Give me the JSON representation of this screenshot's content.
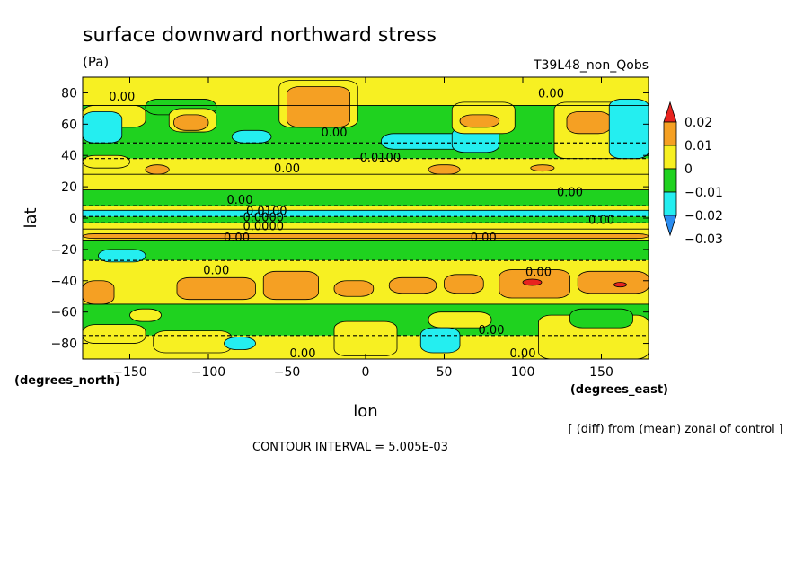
{
  "chart_data": {
    "type": "heatmap",
    "title": "surface downward northward stress",
    "units": "(Pa)",
    "run_label": "T39L48_non_Qobs",
    "xlabel": "lon",
    "ylabel": "lat",
    "x_unit_label": "(degrees_east)",
    "y_unit_label": "(degrees_north)",
    "xlim": [
      -180,
      180
    ],
    "ylim": [
      -90,
      90
    ],
    "x_ticks": [
      -150,
      -100,
      -50,
      0,
      50,
      100,
      150
    ],
    "y_ticks": [
      -80,
      -60,
      -40,
      -20,
      0,
      20,
      40,
      60,
      80
    ],
    "footer_note": "[ (diff) from (mean) zonal of control ]",
    "contour_interval_text": "CONTOUR INTERVAL = 5.005E-03",
    "colorbar": {
      "labels": [
        "0.02",
        "0.01",
        "0",
        "−0.01",
        "−0.02",
        "−0.03"
      ],
      "levels": [
        {
          "lo": 0.02,
          "hi": 0.03,
          "color": "#e8231f"
        },
        {
          "lo": 0.01,
          "hi": 0.02,
          "color": "#f5a023"
        },
        {
          "lo": 0.0,
          "hi": 0.01,
          "color": "#f7f022"
        },
        {
          "lo": -0.01,
          "hi": 0.0,
          "color": "#1fd21f"
        },
        {
          "lo": -0.02,
          "hi": -0.01,
          "color": "#24eef0"
        },
        {
          "lo": -0.03,
          "hi": -0.02,
          "color": "#2b8df0"
        }
      ]
    },
    "contour_labels": [
      {
        "text": "0.00",
        "lon": -155,
        "lat": 78
      },
      {
        "text": "0.00",
        "lon": 118,
        "lat": 80
      },
      {
        "text": "0.00",
        "lon": -20,
        "lat": 55
      },
      {
        "text": "-0.0100",
        "lon": 8,
        "lat": 39
      },
      {
        "text": "0.00",
        "lon": -50,
        "lat": 32
      },
      {
        "text": "0.00",
        "lon": 130,
        "lat": 17
      },
      {
        "text": "0.00",
        "lon": -80,
        "lat": 12
      },
      {
        "text": "0.0100",
        "lon": -63,
        "lat": 5
      },
      {
        "text": "0.0000",
        "lon": -65,
        "lat": 1
      },
      {
        "text": "0.0000",
        "lon": -65,
        "lat": -5
      },
      {
        "text": "0.00",
        "lon": -82,
        "lat": -12
      },
      {
        "text": "0.00",
        "lon": 75,
        "lat": -12
      },
      {
        "text": "0.00",
        "lon": 150,
        "lat": -1
      },
      {
        "text": "0.00",
        "lon": -95,
        "lat": -33
      },
      {
        "text": "0.00",
        "lon": 110,
        "lat": -34
      },
      {
        "text": "0.00",
        "lon": 80,
        "lat": -71
      },
      {
        "text": "0.00",
        "lon": 100,
        "lat": -86
      },
      {
        "text": "0.00",
        "lon": -40,
        "lat": -86
      }
    ],
    "regions": {
      "zonal_bands": [
        {
          "lat": [
            72,
            90
          ],
          "value": 0.005
        },
        {
          "lat": [
            48,
            72
          ],
          "value": -0.005
        },
        {
          "lat": [
            38,
            48
          ],
          "value": -0.005
        },
        {
          "lat": [
            28,
            38
          ],
          "value": 0.005
        },
        {
          "lat": [
            18,
            28
          ],
          "value": 0.003
        },
        {
          "lat": [
            8,
            18
          ],
          "value": -0.005
        },
        {
          "lat": [
            5,
            8
          ],
          "value": 0.003
        },
        {
          "lat": [
            1,
            5
          ],
          "value": -0.015
        },
        {
          "lat": [
            -3,
            1
          ],
          "value": -0.005
        },
        {
          "lat": [
            -7,
            -3
          ],
          "value": 0.004
        },
        {
          "lat": [
            -14,
            -7
          ],
          "value": 0.005
        },
        {
          "lat": [
            -27,
            -14
          ],
          "value": -0.005
        },
        {
          "lat": [
            -55,
            -27
          ],
          "value": 0.005
        },
        {
          "lat": [
            -75,
            -55
          ],
          "value": -0.005
        },
        {
          "lat": [
            -90,
            -75
          ],
          "value": 0.005
        }
      ],
      "features": [
        {
          "lon": -180,
          "lat": 72,
          "w": 40,
          "h": 14,
          "value": 0.005
        },
        {
          "lon": -180,
          "lat": 68,
          "w": 25,
          "h": 20,
          "value": -0.015
        },
        {
          "lon": -140,
          "lat": 76,
          "w": 45,
          "h": 10,
          "value": -0.005
        },
        {
          "lon": -125,
          "lat": 70,
          "w": 30,
          "h": 15,
          "value": 0.005
        },
        {
          "lon": -122,
          "lat": 66,
          "w": 22,
          "h": 10,
          "value": 0.015
        },
        {
          "lon": -85,
          "lat": 56,
          "w": 25,
          "h": 8,
          "value": -0.015
        },
        {
          "lon": -55,
          "lat": 88,
          "w": 50,
          "h": 30,
          "value": 0.005
        },
        {
          "lon": -50,
          "lat": 84,
          "w": 40,
          "h": 26,
          "value": 0.015
        },
        {
          "lon": 10,
          "lat": 54,
          "w": 60,
          "h": 10,
          "value": -0.015
        },
        {
          "lon": 55,
          "lat": 58,
          "w": 30,
          "h": 16,
          "value": -0.015
        },
        {
          "lon": 55,
          "lat": 74,
          "w": 40,
          "h": 20,
          "value": 0.005
        },
        {
          "lon": 60,
          "lat": 66,
          "w": 25,
          "h": 8,
          "value": 0.015
        },
        {
          "lon": 120,
          "lat": 74,
          "w": 60,
          "h": 36,
          "value": 0.005
        },
        {
          "lon": 128,
          "lat": 68,
          "w": 28,
          "h": 14,
          "value": 0.015
        },
        {
          "lon": 155,
          "lat": 76,
          "w": 25,
          "h": 38,
          "value": -0.015
        },
        {
          "lon": -180,
          "lat": 40,
          "w": 30,
          "h": 8,
          "value": 0.005
        },
        {
          "lon": -140,
          "lat": 34,
          "w": 15,
          "h": 6,
          "value": 0.015
        },
        {
          "lon": 40,
          "lat": 34,
          "w": 20,
          "h": 6,
          "value": 0.015
        },
        {
          "lon": 105,
          "lat": 34,
          "w": 15,
          "h": 4,
          "value": 0.015
        },
        {
          "lon": -180,
          "lat": -10,
          "w": 360,
          "h": 3,
          "value": 0.015
        },
        {
          "lon": -170,
          "lat": -20,
          "w": 30,
          "h": 8,
          "value": -0.015
        },
        {
          "lon": -180,
          "lat": -40,
          "w": 20,
          "h": 15,
          "value": 0.015
        },
        {
          "lon": -120,
          "lat": -38,
          "w": 50,
          "h": 14,
          "value": 0.015
        },
        {
          "lon": -65,
          "lat": -34,
          "w": 35,
          "h": 18,
          "value": 0.015
        },
        {
          "lon": -20,
          "lat": -40,
          "w": 25,
          "h": 10,
          "value": 0.015
        },
        {
          "lon": 15,
          "lat": -38,
          "w": 30,
          "h": 10,
          "value": 0.015
        },
        {
          "lon": 50,
          "lat": -36,
          "w": 25,
          "h": 12,
          "value": 0.015
        },
        {
          "lon": 85,
          "lat": -33,
          "w": 45,
          "h": 18,
          "value": 0.015
        },
        {
          "lon": 135,
          "lat": -34,
          "w": 45,
          "h": 14,
          "value": 0.015
        },
        {
          "lon": 100,
          "lat": -39,
          "w": 12,
          "h": 4,
          "value": 0.025
        },
        {
          "lon": 158,
          "lat": -41,
          "w": 8,
          "h": 3,
          "value": 0.025
        },
        {
          "lon": -180,
          "lat": -68,
          "w": 40,
          "h": 12,
          "value": 0.005
        },
        {
          "lon": -135,
          "lat": -72,
          "w": 50,
          "h": 14,
          "value": 0.005
        },
        {
          "lon": -150,
          "lat": -58,
          "w": 20,
          "h": 8,
          "value": 0.005
        },
        {
          "lon": -20,
          "lat": -66,
          "w": 40,
          "h": 22,
          "value": 0.005
        },
        {
          "lon": 40,
          "lat": -60,
          "w": 40,
          "h": 10,
          "value": 0.005
        },
        {
          "lon": 110,
          "lat": -62,
          "w": 70,
          "h": 28,
          "value": 0.005
        },
        {
          "lon": -90,
          "lat": -76,
          "w": 20,
          "h": 8,
          "value": -0.015
        },
        {
          "lon": 35,
          "lat": -70,
          "w": 25,
          "h": 16,
          "value": -0.015
        },
        {
          "lon": 130,
          "lat": -58,
          "w": 40,
          "h": 12,
          "value": -0.005
        }
      ]
    }
  }
}
